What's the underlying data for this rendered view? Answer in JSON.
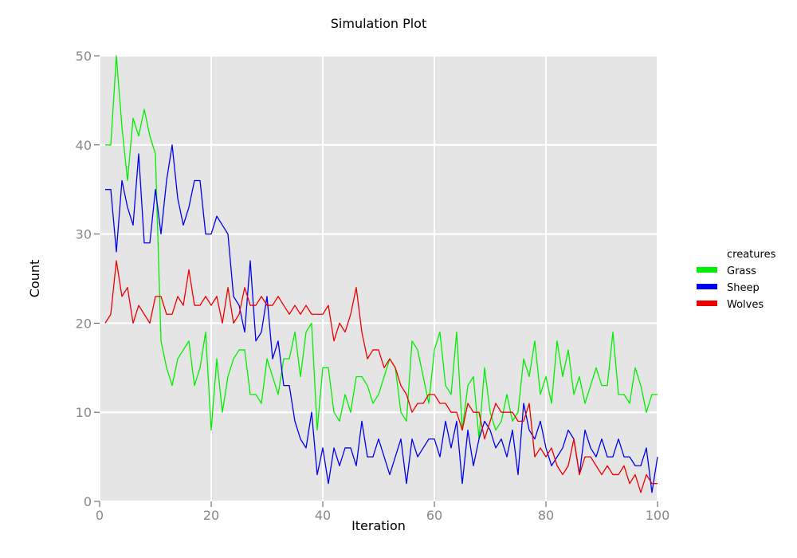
{
  "chart_data": {
    "type": "line",
    "title": "Simulation Plot",
    "xlabel": "Iteration",
    "ylabel": "Count",
    "xlim": [
      0,
      100
    ],
    "ylim": [
      0,
      50
    ],
    "x_ticks": [
      0,
      20,
      40,
      60,
      80,
      100
    ],
    "y_ticks": [
      0,
      10,
      20,
      30,
      40,
      50
    ],
    "grid": true,
    "background": "#e5e5e5",
    "grid_color": "#ffffff",
    "legend": {
      "title": "creatures",
      "position": "right"
    },
    "x": [
      1,
      2,
      3,
      4,
      5,
      6,
      7,
      8,
      9,
      10,
      11,
      12,
      13,
      14,
      15,
      16,
      17,
      18,
      19,
      20,
      21,
      22,
      23,
      24,
      25,
      26,
      27,
      28,
      29,
      30,
      31,
      32,
      33,
      34,
      35,
      36,
      37,
      38,
      39,
      40,
      41,
      42,
      43,
      44,
      45,
      46,
      47,
      48,
      49,
      50,
      51,
      52,
      53,
      54,
      55,
      56,
      57,
      58,
      59,
      60,
      61,
      62,
      63,
      64,
      65,
      66,
      67,
      68,
      69,
      70,
      71,
      72,
      73,
      74,
      75,
      76,
      77,
      78,
      79,
      80,
      81,
      82,
      83,
      84,
      85,
      86,
      87,
      88,
      89,
      90,
      91,
      92,
      93,
      94,
      95,
      96,
      97,
      98,
      99,
      100
    ],
    "series": [
      {
        "name": "Grass",
        "color": "#00ee00",
        "values": [
          40,
          40,
          50,
          42,
          36,
          43,
          41,
          44,
          41,
          39,
          18,
          15,
          13,
          16,
          17,
          18,
          13,
          15,
          19,
          8,
          16,
          10,
          14,
          16,
          17,
          17,
          12,
          12,
          11,
          16,
          14,
          12,
          16,
          16,
          19,
          14,
          19,
          20,
          8,
          15,
          15,
          10,
          9,
          12,
          10,
          14,
          14,
          13,
          11,
          12,
          14,
          16,
          15,
          10,
          9,
          18,
          17,
          14,
          11,
          17,
          19,
          13,
          12,
          19,
          8,
          13,
          14,
          7,
          15,
          10,
          8,
          9,
          12,
          9,
          10,
          16,
          14,
          18,
          12,
          14,
          11,
          18,
          14,
          17,
          12,
          14,
          11,
          13,
          15,
          13,
          13,
          19,
          12,
          12,
          11,
          15,
          13,
          10,
          12,
          12
        ]
      },
      {
        "name": "Sheep",
        "color": "#0000ee",
        "values": [
          35,
          35,
          28,
          36,
          33,
          31,
          39,
          29,
          29,
          35,
          30,
          36,
          40,
          34,
          31,
          33,
          36,
          36,
          30,
          30,
          32,
          31,
          30,
          23,
          22,
          19,
          27,
          18,
          19,
          23,
          16,
          18,
          13,
          13,
          9,
          7,
          6,
          10,
          3,
          6,
          2,
          6,
          4,
          6,
          6,
          4,
          9,
          5,
          5,
          7,
          5,
          3,
          5,
          7,
          2,
          7,
          5,
          6,
          7,
          7,
          5,
          9,
          6,
          9,
          2,
          8,
          4,
          7,
          9,
          8,
          6,
          7,
          5,
          8,
          3,
          11,
          8,
          7,
          9,
          6,
          4,
          5,
          6,
          8,
          7,
          3,
          8,
          6,
          5,
          7,
          5,
          5,
          7,
          5,
          5,
          4,
          4,
          6,
          1,
          5
        ]
      },
      {
        "name": "Wolves",
        "color": "#ee0000",
        "values": [
          20,
          21,
          27,
          23,
          24,
          20,
          22,
          21,
          20,
          23,
          23,
          21,
          21,
          23,
          22,
          26,
          22,
          22,
          23,
          22,
          23,
          20,
          24,
          20,
          21,
          24,
          22,
          22,
          23,
          22,
          22,
          23,
          22,
          21,
          22,
          21,
          22,
          21,
          21,
          21,
          22,
          18,
          20,
          19,
          21,
          24,
          19,
          16,
          17,
          17,
          15,
          16,
          15,
          13,
          12,
          10,
          11,
          11,
          12,
          12,
          11,
          11,
          10,
          10,
          8,
          11,
          10,
          10,
          7,
          9,
          11,
          10,
          10,
          10,
          9,
          9,
          11,
          5,
          6,
          5,
          6,
          4,
          3,
          4,
          7,
          3,
          5,
          5,
          4,
          3,
          4,
          3,
          3,
          4,
          2,
          3,
          1,
          3,
          2,
          2
        ]
      }
    ]
  }
}
